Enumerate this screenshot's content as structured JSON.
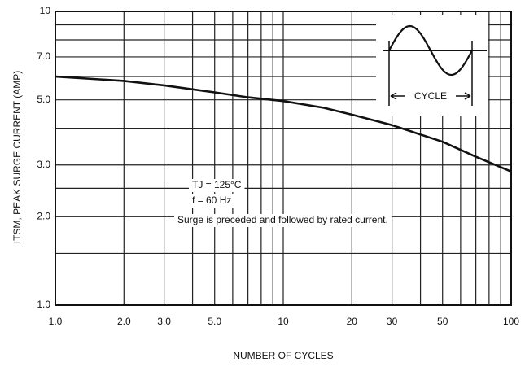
{
  "chart_data": {
    "type": "line",
    "xlabel": "NUMBER OF CYCLES",
    "ylabel": "ITSM, PEAK SURGE CURRENT (AMP)",
    "annotations": [
      "TJ = 125°C",
      "f = 60 Hz",
      "Surge is preceded and followed by rated current."
    ],
    "inset_label": "CYCLE",
    "x": [
      1,
      2,
      3,
      5,
      7,
      10,
      15,
      20,
      30,
      50,
      70,
      100
    ],
    "values": [
      6.0,
      5.8,
      5.6,
      5.3,
      5.1,
      4.95,
      4.7,
      4.45,
      4.1,
      3.6,
      3.2,
      2.85
    ],
    "color": "#111111",
    "xscale": "log",
    "yscale": "log",
    "xlim": [
      1,
      100
    ],
    "ylim": [
      1,
      10
    ],
    "xticks": [
      {
        "value": 1,
        "label": "1.0"
      },
      {
        "value": 2,
        "label": "2.0"
      },
      {
        "value": 3,
        "label": "3.0"
      },
      {
        "value": 5,
        "label": "5.0"
      },
      10,
      20,
      30,
      50,
      100
    ],
    "yticks": [
      {
        "value": 1,
        "label": "1.0"
      },
      {
        "value": 2,
        "label": "2.0"
      },
      {
        "value": 3,
        "label": "3.0"
      },
      {
        "value": 5,
        "label": "5.0"
      },
      {
        "value": 7,
        "label": "7.0"
      },
      10
    ],
    "xminor": [
      4,
      6,
      7,
      8,
      9,
      40,
      60,
      70,
      80,
      90
    ],
    "yminor": [
      1.5,
      2.5,
      4,
      6,
      8,
      9
    ],
    "grid": true
  }
}
